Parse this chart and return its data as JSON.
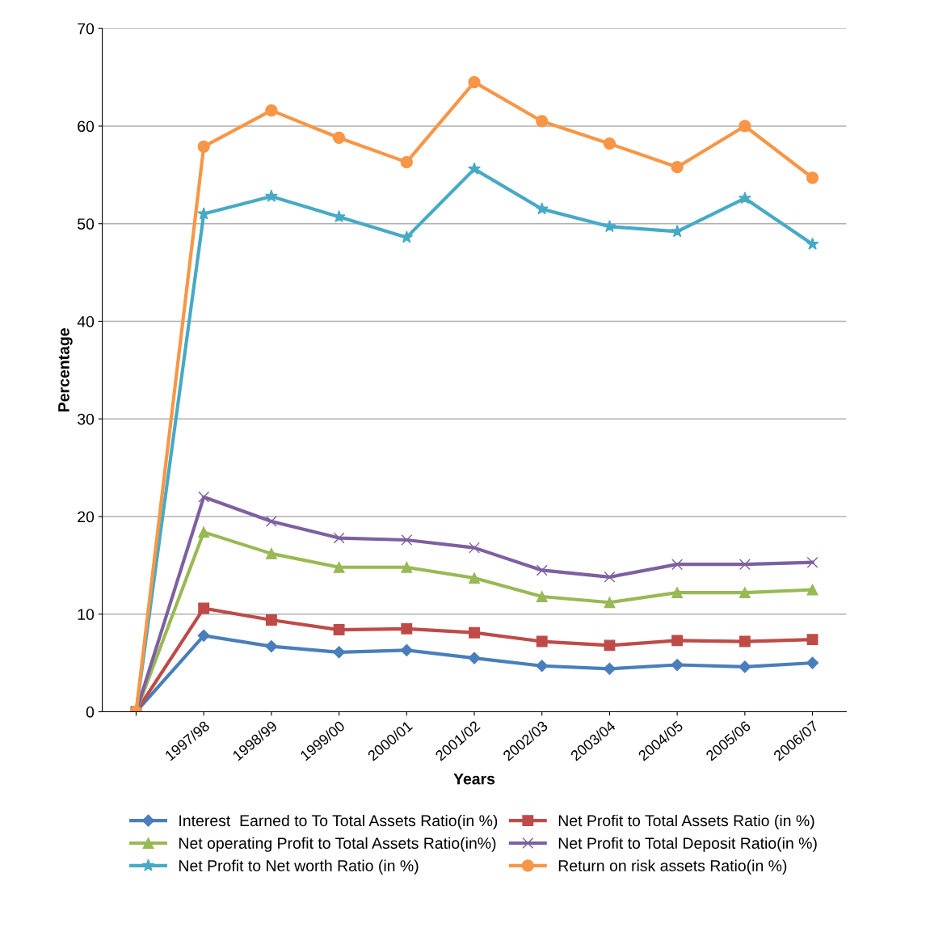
{
  "chart_data": {
    "type": "line",
    "xlabel": "Years",
    "ylabel": "Percentage",
    "categories": [
      null,
      "1997/98",
      "1998/99",
      "1999/00",
      "2000/01",
      "2001/02",
      "2002/03",
      "2003/04",
      "2004/05",
      "2005/06",
      "2006/07"
    ],
    "ylim": [
      0,
      70
    ],
    "yticks": [
      0,
      10,
      20,
      30,
      40,
      50,
      60,
      70
    ],
    "grid": "y",
    "legend": "bottom",
    "series": [
      {
        "name": "Interest  Earned to To Total Assets Ratio(in %)",
        "color": "#4a7ebb",
        "marker": "diamond",
        "values": [
          0,
          7.8,
          6.7,
          6.1,
          6.3,
          5.5,
          4.7,
          4.4,
          4.8,
          4.6,
          5.0
        ]
      },
      {
        "name": "Net Profit to Total Assets Ratio (in %)",
        "color": "#be4b48",
        "marker": "square",
        "values": [
          0,
          10.6,
          9.4,
          8.4,
          8.5,
          8.1,
          7.2,
          6.8,
          7.3,
          7.2,
          7.4
        ]
      },
      {
        "name": "Net operating Profit to Total Assets Ratio(in%)",
        "color": "#98b954",
        "marker": "triangle",
        "values": [
          0,
          18.4,
          16.2,
          14.8,
          14.8,
          13.7,
          11.8,
          11.2,
          12.2,
          12.2,
          12.5
        ]
      },
      {
        "name": "Net Profit to Total Deposit Ratio(in %)",
        "color": "#7d60a0",
        "marker": "cross",
        "values": [
          0,
          22.0,
          19.5,
          17.8,
          17.6,
          16.8,
          14.5,
          13.8,
          15.1,
          15.1,
          15.3
        ]
      },
      {
        "name": "Net Profit to Net worth Ratio (in %)",
        "color": "#46aac5",
        "marker": "star",
        "values": [
          0,
          51.0,
          52.8,
          50.7,
          48.6,
          55.6,
          51.5,
          49.7,
          49.2,
          52.6,
          47.9
        ]
      },
      {
        "name": "Return on risk assets Ratio(in %)",
        "color": "#f79646",
        "marker": "circle",
        "values": [
          0,
          57.9,
          61.6,
          58.8,
          56.3,
          64.5,
          60.5,
          58.2,
          55.8,
          60.0,
          54.7
        ]
      }
    ]
  }
}
